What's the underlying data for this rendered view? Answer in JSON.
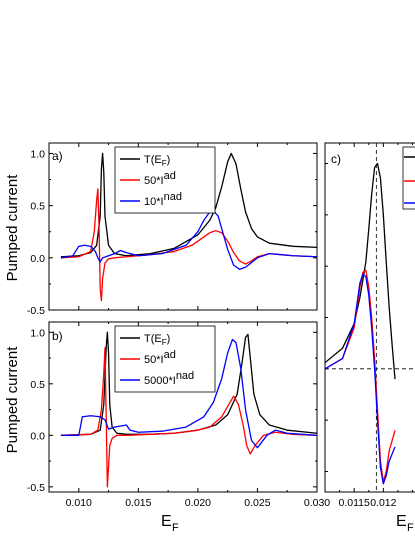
{
  "chart_data": [
    {
      "id": "a",
      "type": "line",
      "panel_label": "a)",
      "ylabel": "Pumped current",
      "xlim": [
        0.0075,
        0.03
      ],
      "ylim": [
        -0.5,
        1.1
      ],
      "x_ticks": [
        "0.010",
        "0.015",
        "0.020",
        "0.025",
        "0.030"
      ],
      "x_tick_values": [
        0.01,
        0.015,
        0.02,
        0.025,
        0.03
      ],
      "y_ticks": [
        "1.0",
        "0.5",
        "0.0",
        "-0.5"
      ],
      "y_tick_values": [
        1.0,
        0.5,
        0.0,
        -0.5
      ],
      "show_x_tick_labels": false,
      "legend_position": "top-center",
      "series": [
        {
          "name": "T(E_F)",
          "color": "#000000",
          "x": [
            0.0085,
            0.01,
            0.011,
            0.0115,
            0.0118,
            0.0119,
            0.012,
            0.0121,
            0.0122,
            0.0125,
            0.013,
            0.014,
            0.016,
            0.018,
            0.02,
            0.021,
            0.0215,
            0.022,
            0.0225,
            0.0228,
            0.0232,
            0.0236,
            0.024,
            0.0245,
            0.025,
            0.026,
            0.028,
            0.03
          ],
          "y": [
            0.01,
            0.02,
            0.05,
            0.12,
            0.4,
            0.85,
            1.0,
            0.82,
            0.4,
            0.12,
            0.04,
            0.02,
            0.04,
            0.09,
            0.22,
            0.36,
            0.48,
            0.68,
            0.92,
            1.0,
            0.9,
            0.66,
            0.44,
            0.28,
            0.2,
            0.14,
            0.11,
            0.1
          ]
        },
        {
          "name": "50*I^ad",
          "color": "#ff0000",
          "x": [
            0.0085,
            0.01,
            0.011,
            0.0113,
            0.0115,
            0.0116,
            0.0117,
            0.0118,
            0.0119,
            0.012,
            0.0122,
            0.0125,
            0.013,
            0.014,
            0.016,
            0.018,
            0.0195,
            0.0205,
            0.021,
            0.0215,
            0.022,
            0.0225,
            0.023,
            0.0235,
            0.024,
            0.0245,
            0.025,
            0.026,
            0.027,
            0.028,
            0.03
          ],
          "y": [
            0.0,
            0.01,
            0.06,
            0.25,
            0.55,
            0.66,
            0.3,
            -0.3,
            -0.41,
            -0.2,
            -0.05,
            -0.01,
            0.0,
            0.01,
            0.03,
            0.06,
            0.12,
            0.2,
            0.24,
            0.26,
            0.24,
            0.16,
            0.05,
            -0.03,
            -0.06,
            -0.03,
            0.01,
            0.04,
            0.03,
            0.02,
            0.01
          ]
        },
        {
          "name": "10*I^nad",
          "color": "#0000ff",
          "x": [
            0.0085,
            0.0095,
            0.01,
            0.0105,
            0.011,
            0.0114,
            0.0116,
            0.0118,
            0.012,
            0.0125,
            0.013,
            0.0135,
            0.014,
            0.015,
            0.017,
            0.019,
            0.02,
            0.0205,
            0.021,
            0.0213,
            0.0217,
            0.022,
            0.0225,
            0.023,
            0.0235,
            0.024,
            0.025,
            0.026,
            0.027,
            0.028,
            0.03
          ],
          "y": [
            0.0,
            0.02,
            0.11,
            0.12,
            0.11,
            0.06,
            0.0,
            -0.04,
            0.0,
            0.02,
            0.04,
            0.07,
            0.05,
            0.02,
            0.04,
            0.12,
            0.25,
            0.36,
            0.44,
            0.45,
            0.4,
            0.28,
            0.08,
            -0.07,
            -0.11,
            -0.09,
            0.0,
            0.04,
            0.03,
            0.02,
            0.01
          ]
        }
      ]
    },
    {
      "id": "b",
      "type": "line",
      "panel_label": "b)",
      "ylabel": "Pumped current",
      "xlabel": "E_F",
      "xlim": [
        0.0075,
        0.03
      ],
      "ylim": [
        -0.55,
        1.1
      ],
      "x_ticks": [
        "0.010",
        "0.015",
        "0.020",
        "0.025",
        "0.030"
      ],
      "x_tick_values": [
        0.01,
        0.015,
        0.02,
        0.025,
        0.03
      ],
      "y_ticks": [
        "1.0",
        "0.5",
        "0.0",
        "-0.5"
      ],
      "y_tick_values": [
        1.0,
        0.5,
        0.0,
        -0.5
      ],
      "show_x_tick_labels": true,
      "legend_position": "top-center",
      "series": [
        {
          "name": "T(E_F)",
          "color": "#000000",
          "x": [
            0.0085,
            0.011,
            0.0118,
            0.0121,
            0.0123,
            0.0124,
            0.0125,
            0.0126,
            0.0128,
            0.0132,
            0.014,
            0.016,
            0.018,
            0.02,
            0.0215,
            0.0225,
            0.0233,
            0.0237,
            0.024,
            0.0242,
            0.0244,
            0.0247,
            0.0252,
            0.026,
            0.0275,
            0.03
          ],
          "y": [
            0.0,
            0.01,
            0.05,
            0.3,
            0.85,
            1.0,
            0.8,
            0.3,
            0.08,
            0.02,
            0.01,
            0.01,
            0.02,
            0.05,
            0.1,
            0.2,
            0.4,
            0.7,
            0.95,
            0.98,
            0.75,
            0.4,
            0.2,
            0.1,
            0.05,
            0.02
          ]
        },
        {
          "name": "50*I^ad",
          "color": "#ff0000",
          "x": [
            0.0085,
            0.011,
            0.0116,
            0.0119,
            0.0121,
            0.0122,
            0.0123,
            0.0124,
            0.0125,
            0.0126,
            0.0128,
            0.0132,
            0.014,
            0.016,
            0.018,
            0.02,
            0.021,
            0.022,
            0.0226,
            0.023,
            0.0234,
            0.0238,
            0.0241,
            0.0244,
            0.0248,
            0.0255,
            0.0265,
            0.028,
            0.03
          ],
          "y": [
            0.0,
            0.01,
            0.05,
            0.25,
            0.6,
            0.85,
            0.2,
            -0.5,
            -0.3,
            -0.1,
            -0.03,
            0.0,
            0.0,
            0.01,
            0.02,
            0.05,
            0.08,
            0.18,
            0.3,
            0.38,
            0.3,
            0.1,
            -0.1,
            -0.18,
            -0.1,
            0.0,
            0.03,
            0.01,
            0.0
          ]
        },
        {
          "name": "5000*I^nad",
          "color": "#0000ff",
          "x": [
            0.0085,
            0.01,
            0.0103,
            0.011,
            0.0118,
            0.0122,
            0.0125,
            0.013,
            0.014,
            0.0143,
            0.015,
            0.017,
            0.019,
            0.0205,
            0.0213,
            0.022,
            0.0225,
            0.0229,
            0.0232,
            0.0236,
            0.024,
            0.0245,
            0.025,
            0.0258,
            0.0265,
            0.0275,
            0.03
          ],
          "y": [
            0.0,
            0.0,
            0.18,
            0.19,
            0.18,
            0.15,
            0.06,
            0.08,
            0.1,
            0.05,
            0.03,
            0.04,
            0.08,
            0.18,
            0.32,
            0.55,
            0.8,
            0.93,
            0.9,
            0.65,
            0.25,
            -0.05,
            -0.12,
            0.0,
            0.05,
            0.02,
            0.0
          ]
        }
      ]
    },
    {
      "id": "c",
      "type": "line",
      "panel_label": "c)",
      "xlabel": "E_F",
      "xlim": [
        0.011,
        0.0128
      ],
      "ylim": [
        -0.6,
        1.1
      ],
      "x_ticks": [
        "0.0115",
        "0.012"
      ],
      "x_tick_values": [
        0.0115,
        0.012
      ],
      "vline_x": 0.01188,
      "hline_y": 0.0,
      "cropped": true,
      "series": [
        {
          "name": "",
          "color": "#000000",
          "x": [
            0.011,
            0.0113,
            0.0115,
            0.0116,
            0.0117,
            0.01175,
            0.0118,
            0.01185,
            0.0119,
            0.01195,
            0.012,
            0.01205,
            0.0121,
            0.01215,
            0.0122
          ],
          "y": [
            0.03,
            0.1,
            0.22,
            0.35,
            0.52,
            0.68,
            0.85,
            0.98,
            1.0,
            0.93,
            0.75,
            0.52,
            0.3,
            0.12,
            -0.05
          ]
        },
        {
          "name": "",
          "color": "#ff0000",
          "x": [
            0.011,
            0.0113,
            0.0115,
            0.0116,
            0.01165,
            0.0117,
            0.01175,
            0.0118,
            0.01185,
            0.0119,
            0.01195,
            0.012,
            0.01205,
            0.0121,
            0.0122
          ],
          "y": [
            0.0,
            0.05,
            0.2,
            0.4,
            0.47,
            0.48,
            0.4,
            0.25,
            0.05,
            -0.2,
            -0.45,
            -0.55,
            -0.5,
            -0.4,
            -0.3
          ]
        },
        {
          "name": "",
          "color": "#0000ff",
          "x": [
            0.011,
            0.0113,
            0.0115,
            0.0116,
            0.01165,
            0.0117,
            0.01175,
            0.0118,
            0.01185,
            0.0119,
            0.01195,
            0.012,
            0.01205,
            0.0121,
            0.0122
          ],
          "y": [
            0.0,
            0.05,
            0.22,
            0.42,
            0.46,
            0.45,
            0.36,
            0.2,
            0.0,
            -0.25,
            -0.48,
            -0.56,
            -0.52,
            -0.45,
            -0.38
          ]
        }
      ]
    }
  ],
  "labels": {
    "a_panel": "a)",
    "b_panel": "b)",
    "c_panel": "c)",
    "ylabel_a": "Pumped current",
    "ylabel_b": "Pumped current",
    "xlabel_b": "E",
    "xlabel_b_sub": "F",
    "xlabel_c": "E",
    "xlabel_c_sub": "F",
    "legend_a": [
      {
        "base": "T(E",
        "sub": "F",
        "tail": ")",
        "sup": ""
      },
      {
        "base": "50*I",
        "sub": "",
        "tail": "",
        "sup": "ad"
      },
      {
        "base": "10*I",
        "sub": "",
        "tail": "",
        "sup": "nad"
      }
    ],
    "legend_b": [
      {
        "base": "T(E",
        "sub": "F",
        "tail": ")",
        "sup": ""
      },
      {
        "base": "50*I",
        "sub": "",
        "tail": "",
        "sup": "ad"
      },
      {
        "base": "5000*I",
        "sub": "",
        "tail": "",
        "sup": "nad"
      }
    ]
  }
}
